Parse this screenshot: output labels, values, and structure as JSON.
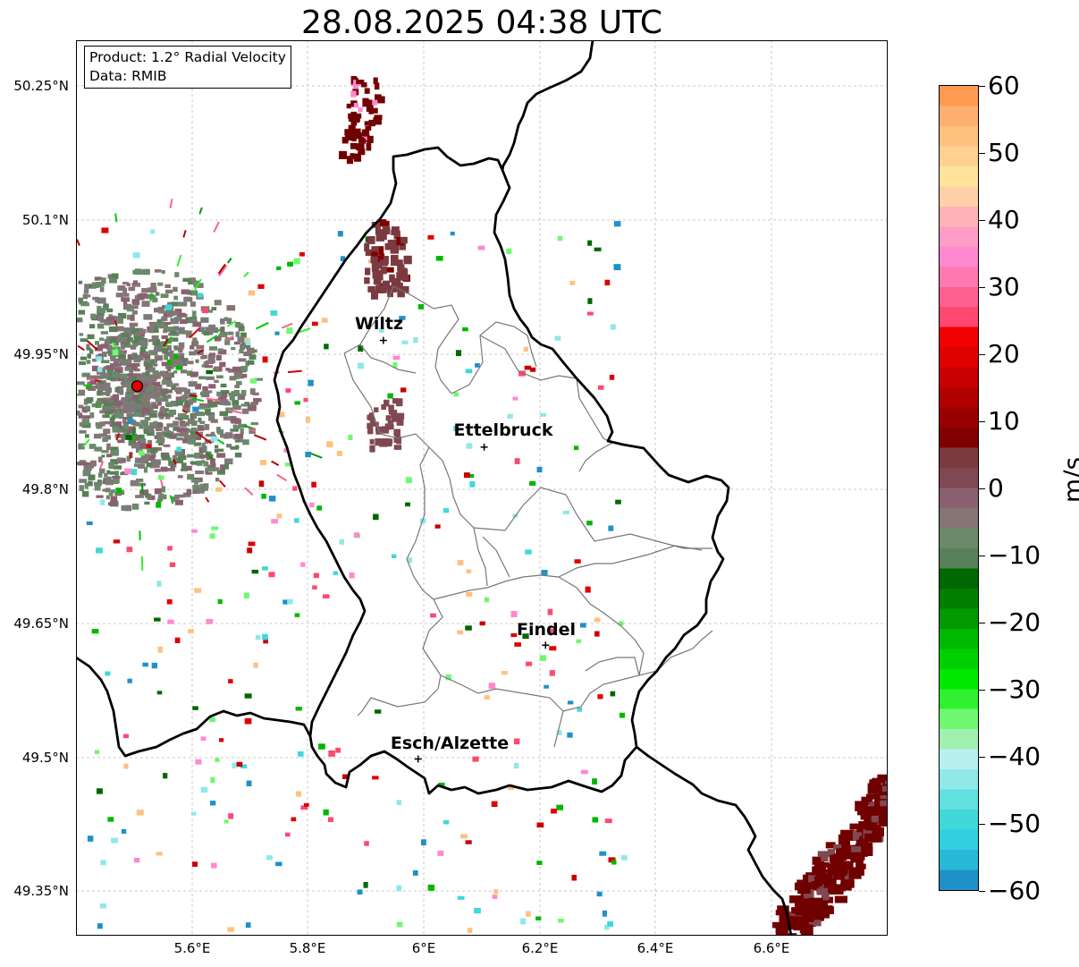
{
  "title": "28.08.2025 04:38 UTC",
  "info_box": {
    "product": "Product: 1.2° Radial Velocity",
    "source": "Data: RMIB"
  },
  "map": {
    "lat_ticks": [
      "50.25°N",
      "50.1°N",
      "49.95°N",
      "49.8°N",
      "49.65°N",
      "49.5°N",
      "49.35°N"
    ],
    "lon_ticks": [
      "5.6°E",
      "5.8°E",
      "6°E",
      "6.2°E",
      "6.4°E",
      "6.6°E"
    ],
    "cities": [
      {
        "name": "Wiltz",
        "lon": 5.93,
        "lat": 49.966
      },
      {
        "name": "Ettelbruck",
        "lon": 6.104,
        "lat": 49.847
      },
      {
        "name": "Findel",
        "lon": 6.21,
        "lat": 49.626
      },
      {
        "name": "Esch/Alzette",
        "lon": 5.99,
        "lat": 49.499
      }
    ],
    "radar": {
      "lon": 5.505,
      "lat": 49.915,
      "color": "#e00000"
    }
  },
  "colorbar": {
    "unit": "m/s",
    "tick_labels": [
      "60",
      "50",
      "40",
      "30",
      "20",
      "10",
      "0",
      "−10",
      "−20",
      "−30",
      "−40",
      "−50",
      "−60"
    ],
    "range": [
      -60,
      60
    ],
    "colors_top_to_bottom": [
      "#ff9a50",
      "#ffb070",
      "#ffc080",
      "#ffd08f",
      "#ffe39a",
      "#ffd0a8",
      "#ffb3b8",
      "#ff9cc8",
      "#ff88d0",
      "#ff78b0",
      "#ff6090",
      "#ff4870",
      "#f00000",
      "#e00000",
      "#c80000",
      "#b00000",
      "#980000",
      "#800000",
      "#7a3a40",
      "#804850",
      "#8a6070",
      "#857575",
      "#6a8a6a",
      "#588058",
      "#006800",
      "#007f00",
      "#009900",
      "#00b800",
      "#00d000",
      "#00e800",
      "#30f030",
      "#70f870",
      "#a0f0b0",
      "#b8f0f0",
      "#90e8e8",
      "#60e0e0",
      "#40d8d8",
      "#30d0e0",
      "#28b8d8",
      "#2090c8"
    ]
  }
}
